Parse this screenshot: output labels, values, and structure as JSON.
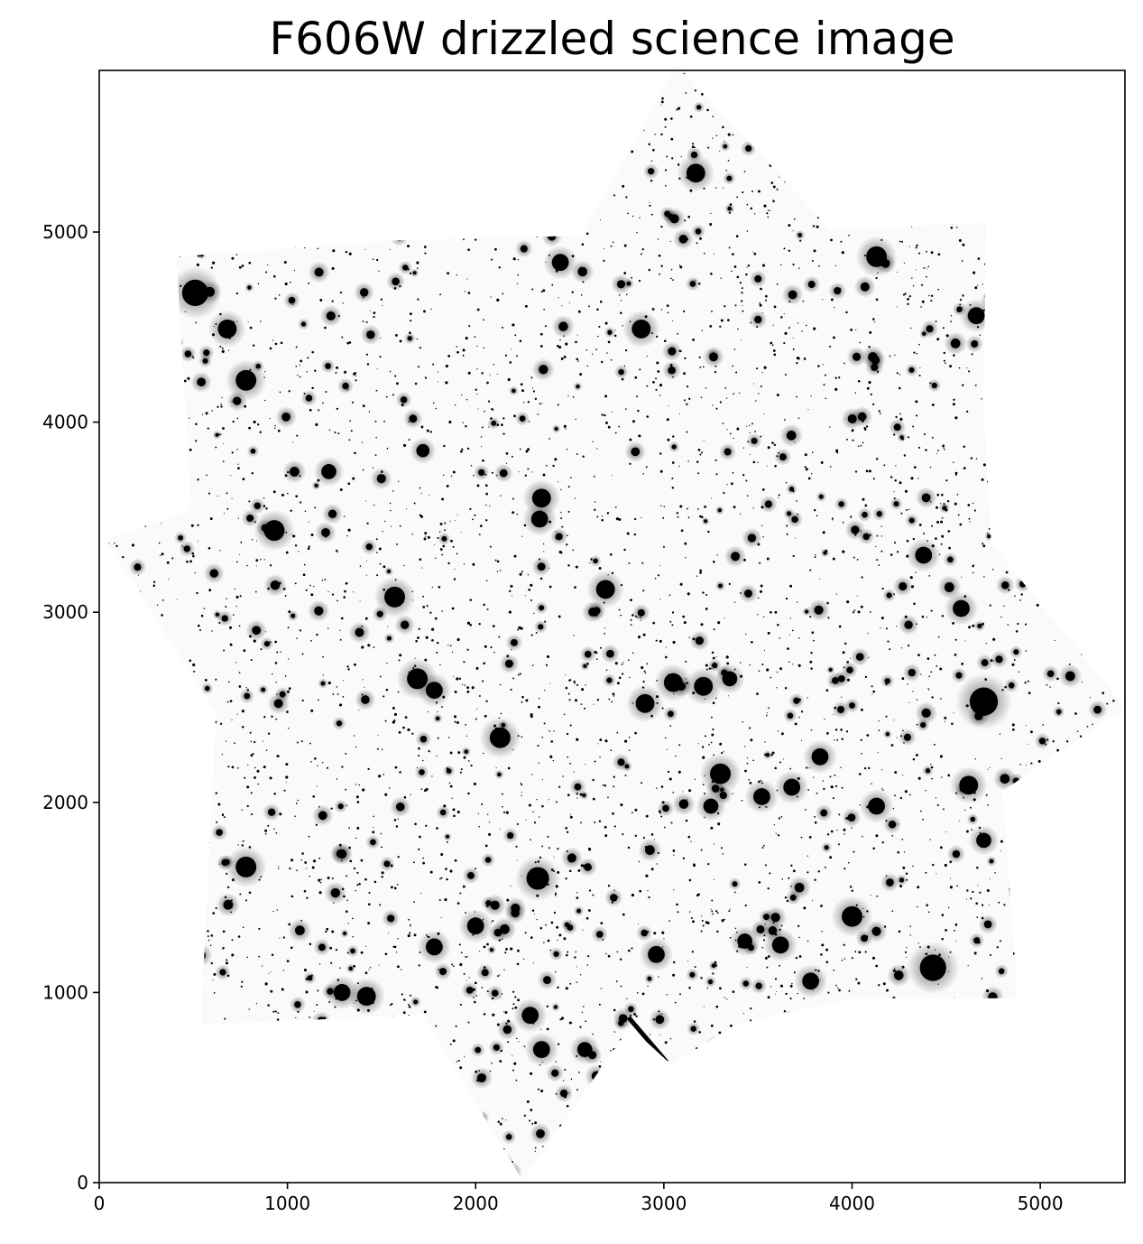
{
  "figure": {
    "title": "F606W drizzled science image"
  },
  "image": {
    "description_name": "drizzled-star-field",
    "colormap": "gray-inverted",
    "background_color": "#ffffff",
    "source_color": "#000000",
    "footprint_shape": "eight-pointed star (two overlapping rotated squares)"
  },
  "axes": {
    "x": {
      "range": [
        0,
        5450
      ],
      "ticks": [
        0,
        1000,
        2000,
        3000,
        4000,
        5000
      ],
      "tick_labels": [
        "0",
        "1000",
        "2000",
        "3000",
        "4000",
        "5000"
      ]
    },
    "y": {
      "range": [
        0,
        5850
      ],
      "ticks": [
        0,
        1000,
        2000,
        3000,
        4000,
        5000
      ],
      "tick_labels": [
        "0",
        "1000",
        "2000",
        "3000",
        "4000",
        "5000"
      ]
    },
    "footprint_vertices": [
      [
        2250,
        10
      ],
      [
        2820,
        820
      ],
      [
        3040,
        620
      ],
      [
        3380,
        830
      ],
      [
        4000,
        970
      ],
      [
        4880,
        970
      ],
      [
        4800,
        2060
      ],
      [
        5450,
        2500
      ],
      [
        4740,
        3360
      ],
      [
        4700,
        4060
      ],
      [
        4710,
        5050
      ],
      [
        3890,
        5010
      ],
      [
        3070,
        5880
      ],
      [
        2560,
        4980
      ],
      [
        1650,
        4960
      ],
      [
        410,
        4870
      ],
      [
        490,
        3540
      ],
      [
        30,
        3380
      ],
      [
        620,
        2470
      ],
      [
        540,
        830
      ],
      [
        1650,
        880
      ],
      [
        1710,
        900
      ]
    ],
    "bright_sources": [
      [
        510,
        4680,
        70
      ],
      [
        3170,
        5310,
        50
      ],
      [
        4130,
        4870,
        55
      ],
      [
        2450,
        4840,
        45
      ],
      [
        2880,
        4490,
        50
      ],
      [
        680,
        4490,
        50
      ],
      [
        780,
        4220,
        55
      ],
      [
        4660,
        4560,
        45
      ],
      [
        2350,
        3600,
        50
      ],
      [
        2340,
        3490,
        45
      ],
      [
        930,
        3430,
        55
      ],
      [
        1570,
        3080,
        55
      ],
      [
        2690,
        3120,
        50
      ],
      [
        4380,
        3300,
        45
      ],
      [
        4580,
        3020,
        45
      ],
      [
        1690,
        2650,
        55
      ],
      [
        1780,
        2590,
        45
      ],
      [
        2900,
        2520,
        50
      ],
      [
        3050,
        2630,
        50
      ],
      [
        3210,
        2610,
        50
      ],
      [
        3350,
        2650,
        40
      ],
      [
        4700,
        2530,
        75
      ],
      [
        2130,
        2340,
        55
      ],
      [
        3830,
        2240,
        45
      ],
      [
        3300,
        2150,
        55
      ],
      [
        3520,
        2030,
        45
      ],
      [
        3680,
        2080,
        45
      ],
      [
        3250,
        1980,
        40
      ],
      [
        4130,
        1980,
        45
      ],
      [
        4620,
        2090,
        50
      ],
      [
        780,
        1660,
        55
      ],
      [
        2330,
        1600,
        60
      ],
      [
        1780,
        1240,
        45
      ],
      [
        2000,
        1350,
        45
      ],
      [
        2960,
        1200,
        45
      ],
      [
        3620,
        1250,
        45
      ],
      [
        3430,
        1270,
        40
      ],
      [
        4000,
        1400,
        55
      ],
      [
        4430,
        1130,
        70
      ],
      [
        3780,
        1060,
        45
      ],
      [
        1290,
        1000,
        45
      ],
      [
        1420,
        980,
        50
      ],
      [
        2290,
        880,
        45
      ],
      [
        2350,
        700,
        45
      ],
      [
        2580,
        700,
        40
      ],
      [
        4700,
        1800,
        40
      ],
      [
        1220,
        3740,
        40
      ],
      [
        1720,
        3850,
        35
      ]
    ],
    "diffraction_streak": [
      [
        2820,
        860
      ],
      [
        3010,
        640
      ]
    ]
  }
}
